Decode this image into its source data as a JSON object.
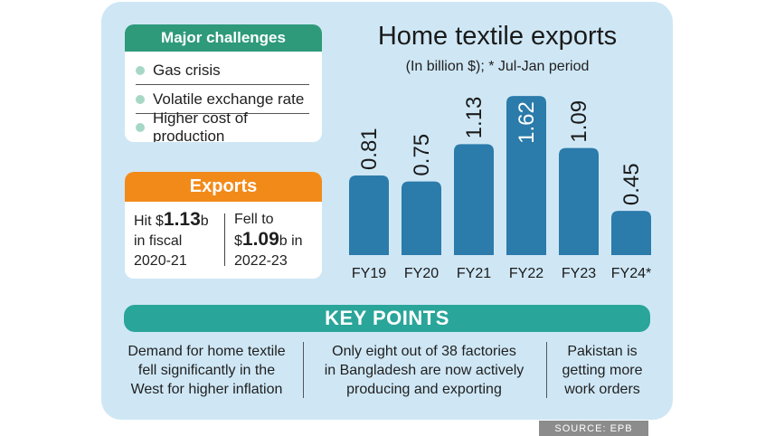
{
  "challenges": {
    "title": "Major challenges",
    "items": [
      "Gas crisis",
      "Volatile exchange rate",
      "Higher cost of production"
    ]
  },
  "exports": {
    "title": "Exports",
    "left": {
      "pre": "Hit $",
      "value": "1.13",
      "unit": "b",
      "line2": "in fiscal",
      "line3": "2020-21"
    },
    "right": {
      "line1": "Fell to",
      "pre": "$",
      "value": "1.09",
      "unit": "b in",
      "line3": "2022-23"
    }
  },
  "key_points": {
    "title": "KEY POINTS",
    "items": [
      [
        "Demand for home textile",
        "fell significantly in the",
        "West for higher inflation"
      ],
      [
        "Only eight out of 38 factories",
        "in Bangladesh are now actively",
        "producing and exporting"
      ],
      [
        "Pakistan is",
        "getting more",
        "work orders"
      ]
    ]
  },
  "source": "SOURCE: EPB",
  "colors": {
    "bar": "#2b7bab",
    "card": "#cfe7f5",
    "challenges_header": "#2e9a7a",
    "exports_header": "#f28a1a",
    "keypoints_header": "#2aa59a"
  },
  "chart_data": {
    "type": "bar",
    "title": "Home textile exports",
    "subtitle": "(In billion $); * Jul-Jan period",
    "categories": [
      "FY19",
      "FY20",
      "FY21",
      "FY22",
      "FY23",
      "FY24*"
    ],
    "values": [
      0.81,
      0.75,
      1.13,
      1.62,
      1.09,
      0.45
    ],
    "data_labels": [
      "0.81",
      "0.75",
      "1.13",
      "1.62",
      "1.09",
      "0.45"
    ],
    "ylim": [
      0,
      1.75
    ],
    "xlabel": "",
    "ylabel": "",
    "grid": false
  }
}
